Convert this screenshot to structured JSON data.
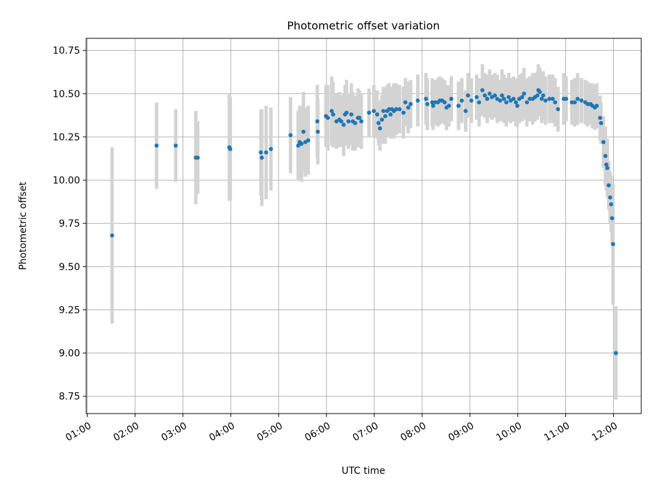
{
  "chart_data": {
    "type": "scatter",
    "title": "Photometric offset variation",
    "xlabel": "UTC time",
    "ylabel": "Photometric offset",
    "xlim": [
      0.98,
      12.58
    ],
    "ylim": [
      8.65,
      10.82
    ],
    "grid": true,
    "colors": {
      "point": "#1f77b4",
      "errorbar": "#d3d3d3",
      "grid": "#b0b0b0"
    },
    "x_ticks": [
      {
        "value": 1,
        "label": "01:00"
      },
      {
        "value": 2,
        "label": "02:00"
      },
      {
        "value": 3,
        "label": "03:00"
      },
      {
        "value": 4,
        "label": "04:00"
      },
      {
        "value": 5,
        "label": "05:00"
      },
      {
        "value": 6,
        "label": "06:00"
      },
      {
        "value": 7,
        "label": "07:00"
      },
      {
        "value": 8,
        "label": "08:00"
      },
      {
        "value": 9,
        "label": "09:00"
      },
      {
        "value": 10,
        "label": "10:00"
      },
      {
        "value": 11,
        "label": "11:00"
      },
      {
        "value": 12,
        "label": "12:00"
      }
    ],
    "y_ticks": [
      {
        "value": 8.75,
        "label": "8.75"
      },
      {
        "value": 9.0,
        "label": "9.00"
      },
      {
        "value": 9.25,
        "label": "9.25"
      },
      {
        "value": 9.5,
        "label": "9.50"
      },
      {
        "value": 9.75,
        "label": "9.75"
      },
      {
        "value": 10.0,
        "label": "10.00"
      },
      {
        "value": 10.25,
        "label": "10.25"
      },
      {
        "value": 10.5,
        "label": "10.50"
      },
      {
        "value": 10.75,
        "label": "10.75"
      }
    ],
    "series": [
      {
        "name": "offset",
        "points": [
          [
            1.52,
            9.68,
            0.51
          ],
          [
            2.45,
            10.2,
            0.25
          ],
          [
            2.85,
            10.2,
            0.21
          ],
          [
            3.27,
            10.13,
            0.27
          ],
          [
            3.31,
            10.13,
            0.21
          ],
          [
            3.97,
            10.19,
            0.31
          ],
          [
            3.99,
            10.18,
            0.3
          ],
          [
            4.63,
            10.16,
            0.25
          ],
          [
            4.65,
            10.13,
            0.28
          ],
          [
            4.74,
            10.16,
            0.27
          ],
          [
            4.84,
            10.18,
            0.24
          ],
          [
            5.25,
            10.26,
            0.22
          ],
          [
            5.41,
            10.2,
            0.2
          ],
          [
            5.44,
            10.22,
            0.21
          ],
          [
            5.48,
            10.21,
            0.22
          ],
          [
            5.52,
            10.28,
            0.23
          ],
          [
            5.56,
            10.22,
            0.2
          ],
          [
            5.62,
            10.23,
            0.2
          ],
          [
            5.81,
            10.34,
            0.21
          ],
          [
            5.82,
            10.28,
            0.19
          ],
          [
            5.99,
            10.37,
            0.18
          ],
          [
            6.03,
            10.36,
            0.19
          ],
          [
            6.11,
            10.4,
            0.2
          ],
          [
            6.14,
            10.38,
            0.19
          ],
          [
            6.21,
            10.34,
            0.16
          ],
          [
            6.27,
            10.35,
            0.16
          ],
          [
            6.31,
            10.34,
            0.15
          ],
          [
            6.36,
            10.32,
            0.18
          ],
          [
            6.39,
            10.38,
            0.17
          ],
          [
            6.42,
            10.39,
            0.19
          ],
          [
            6.46,
            10.34,
            0.16
          ],
          [
            6.52,
            10.38,
            0.18
          ],
          [
            6.55,
            10.34,
            0.17
          ],
          [
            6.6,
            10.33,
            0.16
          ],
          [
            6.66,
            10.36,
            0.17
          ],
          [
            6.69,
            10.36,
            0.16
          ],
          [
            6.73,
            10.34,
            0.16
          ],
          [
            6.89,
            10.39,
            0.14
          ],
          [
            6.99,
            10.4,
            0.15
          ],
          [
            7.06,
            10.38,
            0.14
          ],
          [
            7.09,
            10.33,
            0.13
          ],
          [
            7.12,
            10.3,
            0.13
          ],
          [
            7.16,
            10.35,
            0.14
          ],
          [
            7.19,
            10.4,
            0.14
          ],
          [
            7.23,
            10.37,
            0.16
          ],
          [
            7.27,
            10.4,
            0.15
          ],
          [
            7.31,
            10.41,
            0.15
          ],
          [
            7.34,
            10.38,
            0.14
          ],
          [
            7.37,
            10.41,
            0.13
          ],
          [
            7.41,
            10.4,
            0.16
          ],
          [
            7.46,
            10.41,
            0.15
          ],
          [
            7.53,
            10.41,
            0.14
          ],
          [
            7.61,
            10.39,
            0.15
          ],
          [
            7.65,
            10.45,
            0.14
          ],
          [
            7.71,
            10.42,
            0.15
          ],
          [
            7.76,
            10.44,
            0.14
          ],
          [
            7.91,
            10.46,
            0.15
          ],
          [
            8.08,
            10.47,
            0.15
          ],
          [
            8.11,
            10.44,
            0.15
          ],
          [
            8.21,
            10.45,
            0.14
          ],
          [
            8.23,
            10.43,
            0.14
          ],
          [
            8.27,
            10.45,
            0.13
          ],
          [
            8.33,
            10.45,
            0.14
          ],
          [
            8.37,
            10.46,
            0.14
          ],
          [
            8.42,
            10.46,
            0.13
          ],
          [
            8.47,
            10.45,
            0.13
          ],
          [
            8.51,
            10.42,
            0.13
          ],
          [
            8.56,
            10.43,
            0.12
          ],
          [
            8.61,
            10.47,
            0.13
          ],
          [
            8.76,
            10.43,
            0.14
          ],
          [
            8.83,
            10.46,
            0.13
          ],
          [
            8.91,
            10.4,
            0.12
          ],
          [
            8.96,
            10.49,
            0.13
          ],
          [
            9.03,
            10.46,
            0.13
          ],
          [
            9.14,
            10.48,
            0.13
          ],
          [
            9.19,
            10.45,
            0.14
          ],
          [
            9.26,
            10.52,
            0.15
          ],
          [
            9.31,
            10.49,
            0.13
          ],
          [
            9.36,
            10.47,
            0.14
          ],
          [
            9.41,
            10.5,
            0.14
          ],
          [
            9.46,
            10.48,
            0.13
          ],
          [
            9.52,
            10.49,
            0.13
          ],
          [
            9.57,
            10.47,
            0.14
          ],
          [
            9.63,
            10.46,
            0.12
          ],
          [
            9.67,
            10.49,
            0.15
          ],
          [
            9.71,
            10.47,
            0.14
          ],
          [
            9.76,
            10.45,
            0.14
          ],
          [
            9.81,
            10.48,
            0.14
          ],
          [
            9.85,
            10.46,
            0.13
          ],
          [
            9.91,
            10.47,
            0.13
          ],
          [
            9.96,
            10.45,
            0.14
          ],
          [
            9.99,
            10.43,
            0.12
          ],
          [
            10.03,
            10.47,
            0.14
          ],
          [
            10.09,
            10.48,
            0.14
          ],
          [
            10.13,
            10.5,
            0.15
          ],
          [
            10.19,
            10.45,
            0.14
          ],
          [
            10.25,
            10.47,
            0.13
          ],
          [
            10.31,
            10.47,
            0.15
          ],
          [
            10.36,
            10.48,
            0.14
          ],
          [
            10.41,
            10.49,
            0.14
          ],
          [
            10.43,
            10.52,
            0.15
          ],
          [
            10.46,
            10.51,
            0.14
          ],
          [
            10.5,
            10.47,
            0.14
          ],
          [
            10.53,
            10.49,
            0.14
          ],
          [
            10.58,
            10.46,
            0.14
          ],
          [
            10.66,
            10.47,
            0.14
          ],
          [
            10.73,
            10.47,
            0.14
          ],
          [
            10.78,
            10.45,
            0.14
          ],
          [
            10.84,
            10.41,
            0.13
          ],
          [
            10.96,
            10.47,
            0.15
          ],
          [
            11.01,
            10.47,
            0.13
          ],
          [
            11.13,
            10.45,
            0.13
          ],
          [
            11.19,
            10.45,
            0.14
          ],
          [
            11.25,
            10.47,
            0.15
          ],
          [
            11.33,
            10.46,
            0.13
          ],
          [
            11.41,
            10.45,
            0.13
          ],
          [
            11.46,
            10.44,
            0.13
          ],
          [
            11.52,
            10.44,
            0.12
          ],
          [
            11.56,
            10.43,
            0.13
          ],
          [
            11.61,
            10.42,
            0.13
          ],
          [
            11.65,
            10.43,
            0.13
          ],
          [
            11.72,
            10.36,
            0.13
          ],
          [
            11.74,
            10.33,
            0.12
          ],
          [
            11.79,
            10.22,
            0.15
          ],
          [
            11.83,
            10.14,
            0.17
          ],
          [
            11.85,
            10.09,
            0.15
          ],
          [
            11.87,
            10.07,
            0.17
          ],
          [
            11.9,
            9.97,
            0.14
          ],
          [
            11.93,
            9.9,
            0.15
          ],
          [
            11.95,
            9.86,
            0.16
          ],
          [
            11.97,
            9.78,
            0.15
          ],
          [
            11.99,
            9.63,
            0.35
          ],
          [
            12.05,
            9.0,
            0.27
          ]
        ]
      }
    ]
  }
}
